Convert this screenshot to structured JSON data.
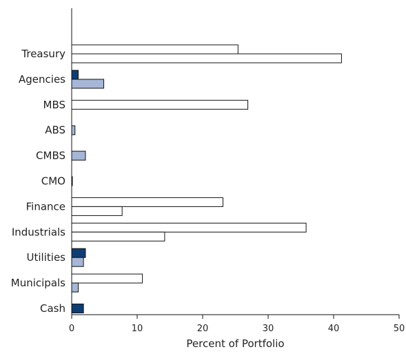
{
  "chart_data": {
    "type": "bar",
    "orientation": "horizontal",
    "xlabel": "Percent of Portfolio",
    "xlim": [
      0,
      50
    ],
    "xticks": [
      0,
      10,
      20,
      30,
      40,
      50
    ],
    "grid": false,
    "categories": [
      "Treasury",
      "Agencies",
      "MBS",
      "ABS",
      "CMBS",
      "CMO",
      "Finance",
      "Industrials",
      "Utilities",
      "Municipals",
      "Cash"
    ],
    "series": [
      {
        "color": "#ffffff",
        "values": [
          25.4,
          0,
          26.9,
          0,
          0,
          0,
          23.1,
          35.8,
          0,
          10.8,
          0
        ]
      },
      {
        "color": "#ffffff",
        "values": [
          41.2,
          0,
          0,
          0,
          0,
          0,
          7.7,
          14.2,
          0,
          0,
          0
        ]
      },
      {
        "color": "#0f3d73",
        "values": [
          0,
          1.0,
          0,
          0,
          0,
          0,
          0,
          0,
          2.1,
          0,
          1.8
        ]
      },
      {
        "color": "#a5b6d6",
        "values": [
          0,
          4.9,
          0,
          0.5,
          2.1,
          0.1,
          0,
          0,
          1.8,
          1.0,
          0
        ]
      }
    ]
  }
}
